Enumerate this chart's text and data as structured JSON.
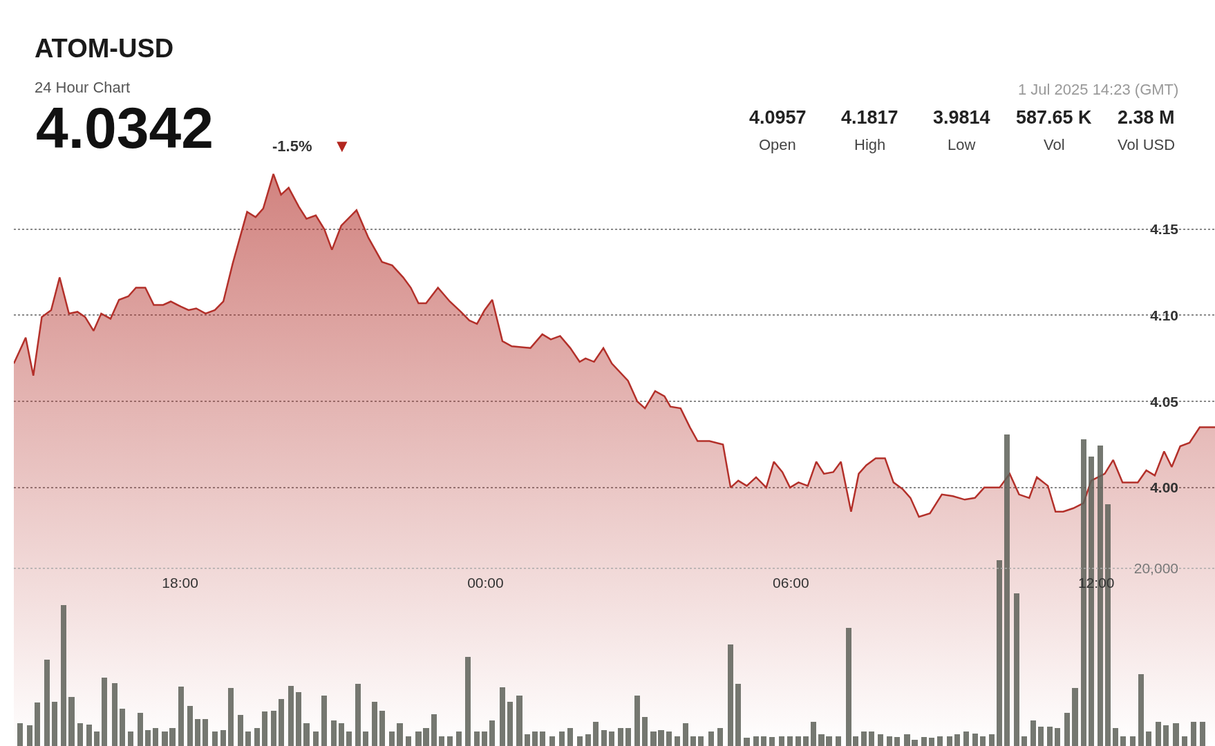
{
  "chart_data": {
    "type": "area",
    "title": "ATOM-USD",
    "subtitle": "24 Hour Chart",
    "annotations": [
      "4.0342",
      "-1.5%",
      "▼",
      "1 Jul 2025 14:23 (GMT)",
      "4.0957",
      "Open",
      "4.1817",
      "High",
      "3.9814",
      "Low",
      "587.65 K",
      "Vol",
      "2.38 M",
      "Vol USD"
    ],
    "xlim": [
      "2025-06-30T14:44",
      "2025-07-01T14:20"
    ],
    "xticks": [
      {
        "value": "2025-06-30T18:00",
        "label": "18:00"
      },
      {
        "value": "2025-07-01T00:00",
        "label": "00:00"
      },
      {
        "value": "2025-07-01T06:00",
        "label": "06:00"
      },
      {
        "value": "2025-07-01T12:00",
        "label": "12:00"
      }
    ],
    "ylim": [
      3.85,
      4.283
    ],
    "yticks": [
      {
        "value": 4.0,
        "label": "4.00"
      },
      {
        "value": 4.05,
        "label": "4.05"
      },
      {
        "value": 4.1,
        "label": "4.10"
      },
      {
        "value": 4.15,
        "label": "4.15"
      }
    ],
    "y2lim": [
      0,
      84000
    ],
    "y2ticks": [
      {
        "value": 20000,
        "label": "20,000"
      }
    ],
    "grid": true,
    "ref_lines": [
      {
        "axis": "y2",
        "value": 20000,
        "color": "#aaaaaa",
        "line_style": "dotted"
      }
    ],
    "series": [
      {
        "type": "bar",
        "axis": "y2",
        "color": "#5d6058",
        "x": [
          "2025-06-30T14:51",
          "2025-06-30T15:03",
          "2025-06-30T15:12",
          "2025-06-30T15:23",
          "2025-06-30T15:32",
          "2025-06-30T15:43",
          "2025-06-30T15:52",
          "2025-06-30T16:02",
          "2025-06-30T16:13",
          "2025-06-30T16:22",
          "2025-06-30T16:31",
          "2025-06-30T16:43",
          "2025-06-30T16:52",
          "2025-06-30T17:02",
          "2025-06-30T17:13",
          "2025-06-30T17:22",
          "2025-06-30T17:31",
          "2025-06-30T17:42",
          "2025-06-30T17:51",
          "2025-06-30T18:01",
          "2025-06-30T18:12",
          "2025-06-30T18:21",
          "2025-06-30T18:30",
          "2025-06-30T18:41",
          "2025-06-30T18:51",
          "2025-06-30T19:00",
          "2025-06-30T19:11",
          "2025-06-30T19:20",
          "2025-06-30T19:31",
          "2025-06-30T19:40",
          "2025-06-30T19:50",
          "2025-06-30T19:59",
          "2025-06-30T20:11",
          "2025-06-30T20:20",
          "2025-06-30T20:29",
          "2025-06-30T20:40",
          "2025-06-30T20:50",
          "2025-06-30T21:01",
          "2025-06-30T21:10",
          "2025-06-30T21:19",
          "2025-06-30T21:30",
          "2025-06-30T21:39",
          "2025-06-30T21:49",
          "2025-06-30T21:58",
          "2025-06-30T22:10",
          "2025-06-30T22:19",
          "2025-06-30T22:29",
          "2025-06-30T22:41",
          "2025-06-30T22:50",
          "2025-06-30T22:59",
          "2025-06-30T23:08",
          "2025-06-30T23:18",
          "2025-06-30T23:29",
          "2025-06-30T23:39",
          "2025-06-30T23:50",
          "2025-06-30T23:59",
          "2025-07-01T00:08",
          "2025-07-01T00:20",
          "2025-07-01T00:29",
          "2025-07-01T00:40",
          "2025-07-01T00:49",
          "2025-07-01T00:58",
          "2025-07-01T01:07",
          "2025-07-01T01:19",
          "2025-07-01T01:30",
          "2025-07-01T01:40",
          "2025-07-01T01:51",
          "2025-07-01T02:01",
          "2025-07-01T02:10",
          "2025-07-01T02:20",
          "2025-07-01T02:29",
          "2025-07-01T02:39",
          "2025-07-01T02:48",
          "2025-07-01T02:59",
          "2025-07-01T03:08",
          "2025-07-01T03:18",
          "2025-07-01T03:27",
          "2025-07-01T03:36",
          "2025-07-01T03:46",
          "2025-07-01T03:56",
          "2025-07-01T04:05",
          "2025-07-01T04:14",
          "2025-07-01T04:26",
          "2025-07-01T04:37",
          "2025-07-01T04:49",
          "2025-07-01T04:58",
          "2025-07-01T05:08",
          "2025-07-01T05:19",
          "2025-07-01T05:28",
          "2025-07-01T05:38",
          "2025-07-01T05:49",
          "2025-07-01T05:59",
          "2025-07-01T06:09",
          "2025-07-01T06:18",
          "2025-07-01T06:27",
          "2025-07-01T06:36",
          "2025-07-01T06:45",
          "2025-07-01T06:56",
          "2025-07-01T07:08",
          "2025-07-01T07:16",
          "2025-07-01T07:26",
          "2025-07-01T07:35",
          "2025-07-01T07:46",
          "2025-07-01T07:56",
          "2025-07-01T08:05",
          "2025-07-01T08:17",
          "2025-07-01T08:26",
          "2025-07-01T08:37",
          "2025-07-01T08:46",
          "2025-07-01T08:56",
          "2025-07-01T09:07",
          "2025-07-01T09:16",
          "2025-07-01T09:27",
          "2025-07-01T09:37",
          "2025-07-01T09:46",
          "2025-07-01T09:57",
          "2025-07-01T10:06",
          "2025-07-01T10:15",
          "2025-07-01T10:26",
          "2025-07-01T10:35",
          "2025-07-01T10:46",
          "2025-07-01T10:55",
          "2025-07-01T11:05",
          "2025-07-01T11:14",
          "2025-07-01T11:26",
          "2025-07-01T11:35",
          "2025-07-01T11:45",
          "2025-07-01T11:54",
          "2025-07-01T12:05",
          "2025-07-01T12:14",
          "2025-07-01T12:23",
          "2025-07-01T12:32",
          "2025-07-01T12:43",
          "2025-07-01T12:53",
          "2025-07-01T13:02",
          "2025-07-01T13:13",
          "2025-07-01T13:22",
          "2025-07-01T13:34",
          "2025-07-01T13:44",
          "2025-07-01T13:55",
          "2025-07-01T14:05"
        ],
        "values": [
          2600,
          2300,
          4900,
          9700,
          5000,
          15900,
          5500,
          2600,
          2400,
          1600,
          7700,
          7100,
          4200,
          1600,
          3700,
          1800,
          2000,
          1600,
          2000,
          6700,
          4500,
          3000,
          3000,
          1600,
          1800,
          6500,
          3500,
          1600,
          2000,
          3900,
          4000,
          5300,
          6800,
          6100,
          2600,
          1600,
          5700,
          2900,
          2600,
          1600,
          7000,
          1600,
          5000,
          4000,
          1600,
          2600,
          1100,
          1600,
          2000,
          3600,
          1100,
          1100,
          1600,
          10000,
          1600,
          1600,
          2900,
          6600,
          5000,
          5700,
          1300,
          1600,
          1600,
          1100,
          1600,
          2000,
          1100,
          1300,
          2700,
          1800,
          1600,
          2000,
          2000,
          5700,
          3300,
          1600,
          1800,
          1600,
          1100,
          2600,
          1100,
          1100,
          1600,
          2000,
          11400,
          7000,
          900,
          1100,
          1100,
          1000,
          1100,
          1100,
          1100,
          1100,
          2700,
          1300,
          1100,
          1100,
          13300,
          1100,
          1600,
          1600,
          1300,
          1100,
          1000,
          1300,
          700,
          1000,
          900,
          1100,
          1100,
          1300,
          1600,
          1400,
          1100,
          1300,
          20900,
          35100,
          17200,
          1100,
          2900,
          2200,
          2200,
          2000,
          3700,
          6500,
          34500,
          32600,
          33800,
          27200,
          2000,
          1100,
          1100,
          8100,
          1600,
          2700,
          2300,
          2600,
          1100,
          2700,
          2700
        ]
      },
      {
        "color": "#b3302a",
        "x": [
          "2025-06-30T14:44",
          "2025-06-30T14:58",
          "2025-06-30T15:07",
          "2025-06-30T15:17",
          "2025-06-30T15:28",
          "2025-06-30T15:38",
          "2025-06-30T15:49",
          "2025-06-30T15:59",
          "2025-06-30T16:08",
          "2025-06-30T16:18",
          "2025-06-30T16:27",
          "2025-06-30T16:38",
          "2025-06-30T16:48",
          "2025-06-30T16:59",
          "2025-06-30T17:08",
          "2025-06-30T17:19",
          "2025-06-30T17:29",
          "2025-06-30T17:40",
          "2025-06-30T17:49",
          "2025-06-30T18:01",
          "2025-06-30T18:10",
          "2025-06-30T18:19",
          "2025-06-30T18:30",
          "2025-06-30T18:41",
          "2025-06-30T18:51",
          "2025-06-30T19:02",
          "2025-06-30T19:19",
          "2025-06-30T19:29",
          "2025-06-30T19:38",
          "2025-06-30T19:50",
          "2025-06-30T19:59",
          "2025-06-30T20:08",
          "2025-06-30T20:20",
          "2025-06-30T20:29",
          "2025-06-30T20:40",
          "2025-06-30T20:50",
          "2025-06-30T20:59",
          "2025-06-30T21:10",
          "2025-06-30T21:28",
          "2025-06-30T21:42",
          "2025-06-30T21:58",
          "2025-06-30T22:10",
          "2025-06-30T22:23",
          "2025-06-30T22:32",
          "2025-06-30T22:41",
          "2025-06-30T22:50",
          "2025-06-30T23:04",
          "2025-06-30T23:18",
          "2025-06-30T23:31",
          "2025-06-30T23:41",
          "2025-06-30T23:50",
          "2025-06-30T23:59",
          "2025-07-01T00:08",
          "2025-07-01T00:20",
          "2025-07-01T00:31",
          "2025-07-01T00:53",
          "2025-07-01T01:07",
          "2025-07-01T01:17",
          "2025-07-01T01:28",
          "2025-07-01T01:40",
          "2025-07-01T01:51",
          "2025-07-01T01:58",
          "2025-07-01T02:08",
          "2025-07-01T02:19",
          "2025-07-01T02:29",
          "2025-07-01T02:48",
          "2025-07-01T02:59",
          "2025-07-01T03:08",
          "2025-07-01T03:20",
          "2025-07-01T03:31",
          "2025-07-01T03:38",
          "2025-07-01T03:50",
          "2025-07-01T04:01",
          "2025-07-01T04:10",
          "2025-07-01T04:24",
          "2025-07-01T04:40",
          "2025-07-01T04:49",
          "2025-07-01T04:58",
          "2025-07-01T05:08",
          "2025-07-01T05:19",
          "2025-07-01T05:31",
          "2025-07-01T05:40",
          "2025-07-01T05:50",
          "2025-07-01T05:59",
          "2025-07-01T06:09",
          "2025-07-01T06:20",
          "2025-07-01T06:30",
          "2025-07-01T06:39",
          "2025-07-01T06:50",
          "2025-07-01T06:59",
          "2025-07-01T07:11",
          "2025-07-01T07:20",
          "2025-07-01T07:29",
          "2025-07-01T07:40",
          "2025-07-01T07:51",
          "2025-07-01T08:01",
          "2025-07-01T08:12",
          "2025-07-01T08:21",
          "2025-07-01T08:31",
          "2025-07-01T08:44",
          "2025-07-01T08:58",
          "2025-07-01T09:11",
          "2025-07-01T09:25",
          "2025-07-01T09:37",
          "2025-07-01T09:48",
          "2025-07-01T10:06",
          "2025-07-01T10:18",
          "2025-07-01T10:29",
          "2025-07-01T10:41",
          "2025-07-01T10:50",
          "2025-07-01T11:03",
          "2025-07-01T11:12",
          "2025-07-01T11:21",
          "2025-07-01T11:33",
          "2025-07-01T11:45",
          "2025-07-01T11:54",
          "2025-07-01T12:10",
          "2025-07-01T12:20",
          "2025-07-01T12:31",
          "2025-07-01T12:49",
          "2025-07-01T12:59",
          "2025-07-01T13:09",
          "2025-07-01T13:20",
          "2025-07-01T13:29",
          "2025-07-01T13:39",
          "2025-07-01T13:50",
          "2025-07-01T14:02",
          "2025-07-01T14:20"
        ],
        "values": [
          4.072,
          4.087,
          4.065,
          4.099,
          4.103,
          4.122,
          4.101,
          4.102,
          4.099,
          4.091,
          4.101,
          4.098,
          4.109,
          4.111,
          4.116,
          4.116,
          4.106,
          4.106,
          4.108,
          4.105,
          4.103,
          4.104,
          4.101,
          4.103,
          4.108,
          4.13,
          4.16,
          4.157,
          4.162,
          4.182,
          4.17,
          4.174,
          4.163,
          4.156,
          4.158,
          4.15,
          4.138,
          4.152,
          4.161,
          4.145,
          4.131,
          4.129,
          4.122,
          4.116,
          4.107,
          4.107,
          4.116,
          4.108,
          4.102,
          4.097,
          4.095,
          4.103,
          4.109,
          4.085,
          4.082,
          4.081,
          4.089,
          4.086,
          4.088,
          4.081,
          4.073,
          4.075,
          4.073,
          4.081,
          4.072,
          4.062,
          4.05,
          4.046,
          4.056,
          4.053,
          4.047,
          4.046,
          4.035,
          4.027,
          4.027,
          4.025,
          4.0,
          4.004,
          4.001,
          4.006,
          4.0,
          4.015,
          4.009,
          4.0,
          4.003,
          4.001,
          4.015,
          4.008,
          4.009,
          4.015,
          3.986,
          4.008,
          4.013,
          4.017,
          4.017,
          4.003,
          3.999,
          3.994,
          3.983,
          3.985,
          3.996,
          3.995,
          3.993,
          3.994,
          4.0,
          4.0,
          4.008,
          3.996,
          3.994,
          4.006,
          4.001,
          3.986,
          3.986,
          3.988,
          3.991,
          4.004,
          4.008,
          4.016,
          4.003,
          4.003,
          4.01,
          4.007,
          4.021,
          4.012,
          4.024,
          4.026,
          4.035,
          4.035
        ]
      }
    ]
  }
}
